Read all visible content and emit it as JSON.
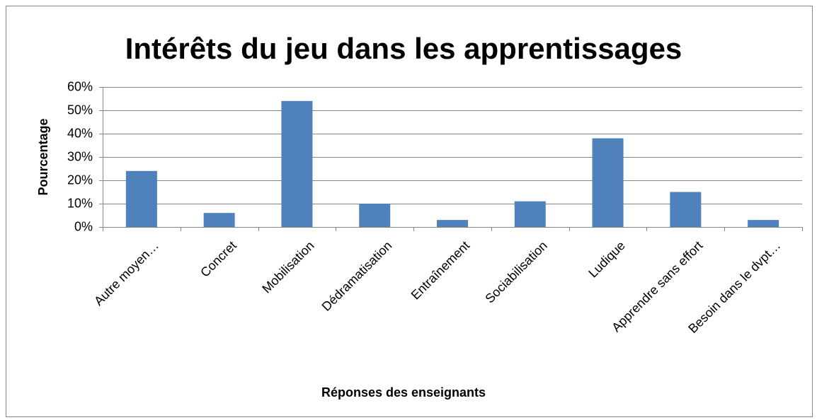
{
  "chart_data": {
    "type": "bar",
    "title": "Intérêts du jeu dans les apprentissages",
    "xlabel": "Réponses des enseignants",
    "ylabel": "Pourcentage",
    "categories": [
      "Autre moyen…",
      "Concret",
      "Mobilisation",
      "Dédramatisation",
      "Entraînement",
      "Sociabilisation",
      "Ludique",
      "Apprendre sans effort",
      "Besoin dans le dvpt…"
    ],
    "values": [
      24,
      6,
      54,
      10,
      3,
      11,
      38,
      15,
      3
    ],
    "color": "#4f81bd",
    "ylim": [
      0,
      60
    ],
    "yticks": [
      {
        "value": 0,
        "label": "0%"
      },
      {
        "value": 10,
        "label": "10%"
      },
      {
        "value": 20,
        "label": "20%"
      },
      {
        "value": 30,
        "label": "30%"
      },
      {
        "value": 40,
        "label": "40%"
      },
      {
        "value": 50,
        "label": "50%"
      },
      {
        "value": 60,
        "label": "60%"
      }
    ],
    "grid": true
  }
}
